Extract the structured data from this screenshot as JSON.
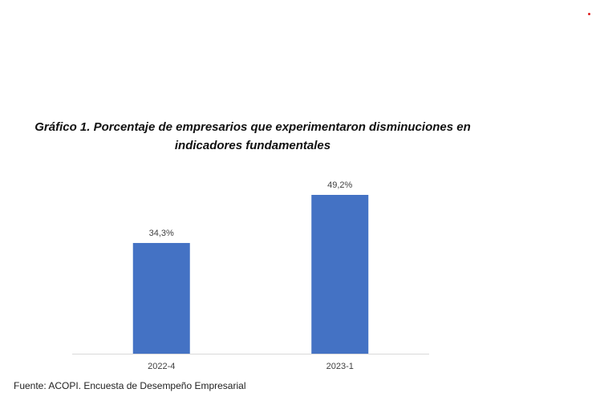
{
  "colors": {
    "bar": "#4472C4",
    "axis": "#D9D9D9",
    "marker": "#e02020"
  },
  "chart_data": {
    "type": "bar",
    "title_lines": [
      "Gráfico 1. Porcentaje de empresarios que experimentaron disminuciones en",
      "indicadores fundamentales"
    ],
    "categories": [
      "2022-4",
      "2023-1"
    ],
    "values": [
      34.3,
      49.2
    ],
    "value_labels": [
      "34,3%",
      "49,2%"
    ],
    "ylim": [
      0,
      49.2
    ],
    "grid": false,
    "legend": "none",
    "xlabel": "",
    "ylabel": ""
  },
  "source": "Fuente: ACOPI. Encuesta de Desempeño Empresarial"
}
